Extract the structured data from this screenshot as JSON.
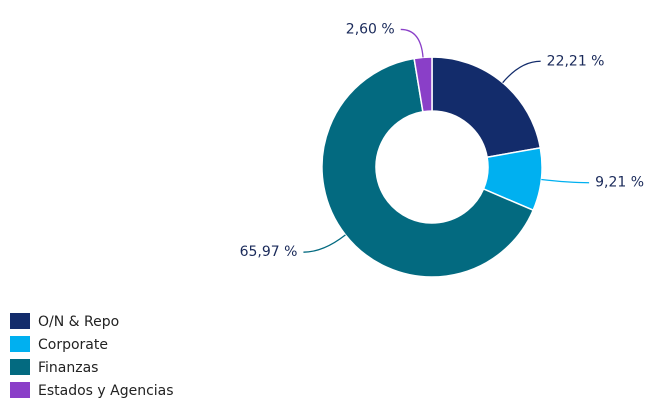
{
  "chart_data": {
    "type": "donut",
    "categories": [
      "O/N & Repo",
      "Corporate",
      "Finanzas",
      "Estados y Agencias"
    ],
    "values": [
      22.21,
      9.21,
      65.97,
      2.6
    ],
    "value_labels": [
      "22,21 %",
      "9,21 %",
      "65,97 %",
      "2,60 %"
    ],
    "colors": [
      "#132c6b",
      "#00b0f0",
      "#036a80",
      "#8a3fc8"
    ],
    "legend": "bottom-left"
  }
}
